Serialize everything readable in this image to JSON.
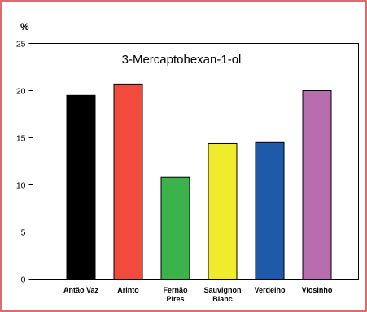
{
  "chart_data": {
    "type": "bar",
    "title": "3-Mercaptohexan-1-ol",
    "xlabel": "",
    "ylabel": "%",
    "ylim": [
      0,
      25
    ],
    "yticks": [
      0,
      5,
      10,
      15,
      20,
      25
    ],
    "categories": [
      "Antão Vaz",
      "Arinto",
      "Fernão Pires",
      "Sauvignon Blanc",
      "Verdelho",
      "Viosinho"
    ],
    "values": [
      19.5,
      20.7,
      10.8,
      14.4,
      14.5,
      20.0
    ],
    "colors": [
      "#000000",
      "#f04b3c",
      "#3cb34a",
      "#f0ec2c",
      "#1e5aa9",
      "#b86eae"
    ],
    "grid": false,
    "show_legend": false
  }
}
